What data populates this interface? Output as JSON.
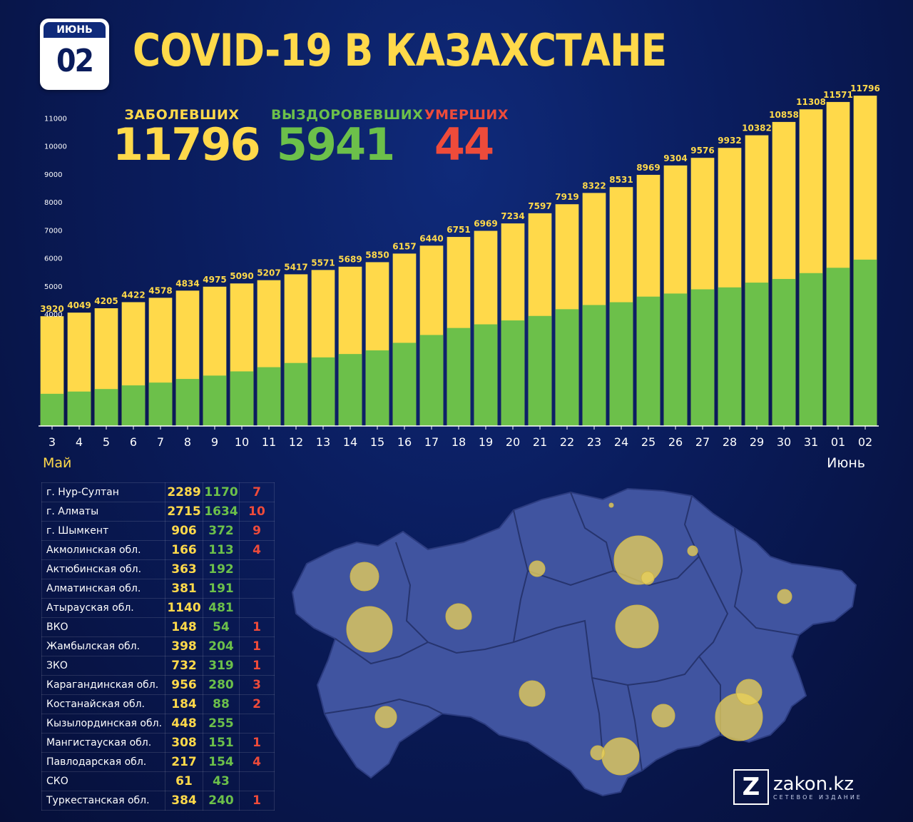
{
  "badge": {
    "month": "ИЮНЬ",
    "day": "02"
  },
  "title": "COVID-19 В КАЗАХСТАНЕ",
  "stats": {
    "cases": {
      "label": "ЗАБОЛЕВШИХ",
      "value": "11796"
    },
    "recovered": {
      "label": "ВЫЗДОРОВЕВШИХ",
      "value": "5941"
    },
    "deaths": {
      "label": "УМЕРШИХ",
      "value": "44"
    }
  },
  "month_labels": {
    "start": "Май",
    "end": "Июнь"
  },
  "colors": {
    "cases": "#ffd94a",
    "recovered": "#6cc04a",
    "deaths": "#ee4b3a",
    "background": "#0a1c5c",
    "map": "#4054a0"
  },
  "chart_data": {
    "type": "bar",
    "categories": [
      "3",
      "4",
      "5",
      "6",
      "7",
      "8",
      "9",
      "10",
      "11",
      "12",
      "13",
      "14",
      "15",
      "16",
      "17",
      "18",
      "19",
      "20",
      "21",
      "22",
      "23",
      "24",
      "25",
      "26",
      "27",
      "28",
      "29",
      "30",
      "31",
      "01",
      "02"
    ],
    "series": [
      {
        "name": "",
        "values": [
          3920,
          4049,
          4205,
          4422,
          4578,
          4834,
          4975,
          5090,
          5207,
          5417,
          5571,
          5689,
          5850,
          6157,
          6440,
          6751,
          6969,
          7234,
          7597,
          7919,
          8322,
          8531,
          8969,
          9304,
          9576,
          9932,
          10382,
          10858,
          11308,
          11571,
          11796
        ]
      },
      {
        "name": "",
        "values": [
          1150,
          1230,
          1320,
          1450,
          1550,
          1680,
          1800,
          1950,
          2100,
          2250,
          2450,
          2570,
          2700,
          2970,
          3250,
          3500,
          3630,
          3770,
          3930,
          4170,
          4320,
          4420,
          4620,
          4730,
          4880,
          4950,
          5120,
          5250,
          5460,
          5650,
          5941
        ]
      }
    ],
    "yticks": [
      4000,
      5000,
      6000,
      7000,
      8000,
      9000,
      10000,
      11000
    ],
    "ylim": [
      0,
      11900
    ],
    "grid": false
  },
  "regions": [
    {
      "name": "г. Нур-Султан",
      "cases": "2289",
      "recovered": "1170",
      "deaths": "7"
    },
    {
      "name": "г. Алматы",
      "cases": "2715",
      "recovered": "1634",
      "deaths": "10"
    },
    {
      "name": "г. Шымкент",
      "cases": "906",
      "recovered": "372",
      "deaths": "9"
    },
    {
      "name": "Акмолинская обл.",
      "cases": "166",
      "recovered": "113",
      "deaths": "4"
    },
    {
      "name": "Актюбинская обл.",
      "cases": "363",
      "recovered": "192",
      "deaths": ""
    },
    {
      "name": "Алматинская обл.",
      "cases": "381",
      "recovered": "191",
      "deaths": ""
    },
    {
      "name": "Атырауская обл.",
      "cases": "1140",
      "recovered": "481",
      "deaths": ""
    },
    {
      "name": "ВКО",
      "cases": "148",
      "recovered": "54",
      "deaths": "1"
    },
    {
      "name": "Жамбылская обл.",
      "cases": "398",
      "recovered": "204",
      "deaths": "1"
    },
    {
      "name": "ЗКО",
      "cases": "732",
      "recovered": "319",
      "deaths": "1"
    },
    {
      "name": "Карагандинская обл.",
      "cases": "956",
      "recovered": "280",
      "deaths": "3"
    },
    {
      "name": "Костанайская обл.",
      "cases": "184",
      "recovered": "88",
      "deaths": "2"
    },
    {
      "name": "Кызылординская обл.",
      "cases": "448",
      "recovered": "255",
      "deaths": ""
    },
    {
      "name": "Мангистауская обл.",
      "cases": "308",
      "recovered": "151",
      "deaths": "1"
    },
    {
      "name": "Павлодарская обл.",
      "cases": "217",
      "recovered": "154",
      "deaths": "4"
    },
    {
      "name": "СКО",
      "cases": "61",
      "recovered": "43",
      "deaths": ""
    },
    {
      "name": "Туркестанская обл.",
      "cases": "384",
      "recovered": "240",
      "deaths": "1"
    }
  ],
  "logo": {
    "mark": "Z",
    "name": "zakon.kz",
    "tagline": "СЕТЕВОЕ ИЗДАНИЕ"
  }
}
